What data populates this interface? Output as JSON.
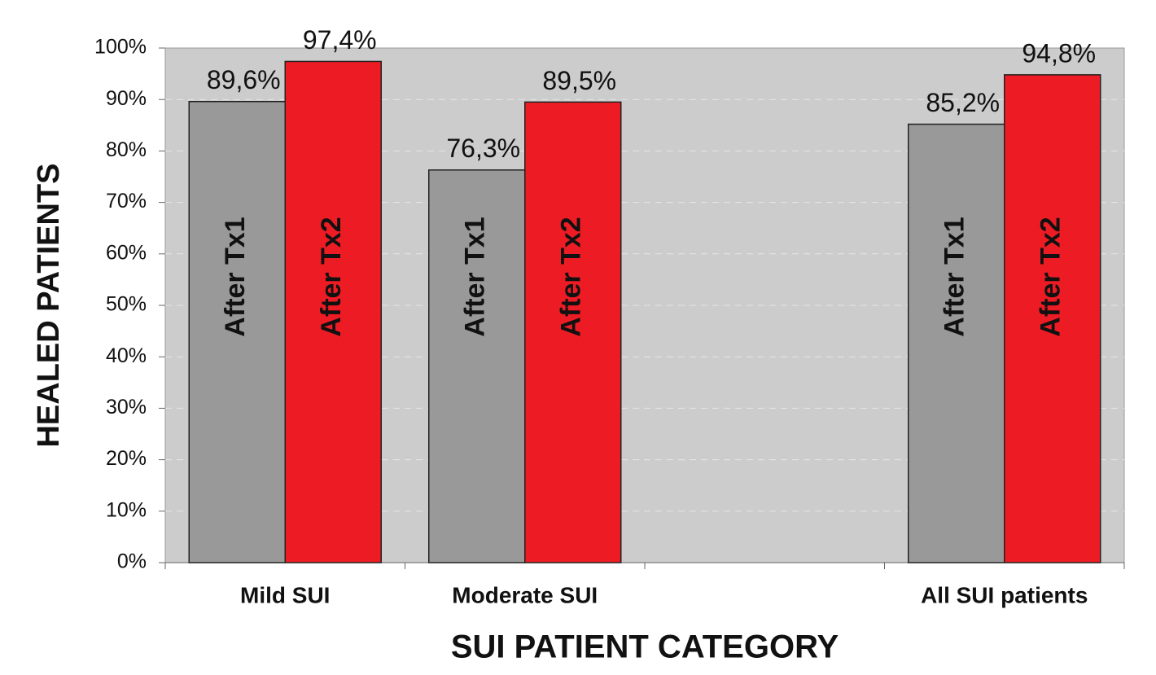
{
  "chart_data": {
    "type": "bar",
    "x_label": "SUI PATIENT CATEGORY",
    "y_label": "HEALED PATIENTS",
    "categories": [
      "Mild SUI",
      "Moderate SUI",
      null,
      "All SUI patients"
    ],
    "series": [
      {
        "name": "After Tx1",
        "color": "#999999",
        "values": [
          89.6,
          76.3,
          null,
          85.2
        ],
        "value_labels": [
          "89,6%",
          "76,3%",
          null,
          "85,2%"
        ]
      },
      {
        "name": "After Tx2",
        "color": "#ed1c24",
        "values": [
          97.4,
          89.5,
          null,
          94.8
        ],
        "value_labels": [
          "97,4%",
          "89,5%",
          null,
          "94,8%"
        ]
      }
    ],
    "ylim": [
      0,
      100
    ],
    "yticks": [
      {
        "value": 0,
        "label": "0%"
      },
      {
        "value": 10,
        "label": "10%"
      },
      {
        "value": 20,
        "label": "20%"
      },
      {
        "value": 30,
        "label": "30%"
      },
      {
        "value": 40,
        "label": "40%"
      },
      {
        "value": 50,
        "label": "50%"
      },
      {
        "value": 60,
        "label": "60%"
      },
      {
        "value": 70,
        "label": "70%"
      },
      {
        "value": 80,
        "label": "80%"
      },
      {
        "value": 90,
        "label": "90%"
      },
      {
        "value": 100,
        "label": "100%"
      }
    ],
    "grid": true
  }
}
